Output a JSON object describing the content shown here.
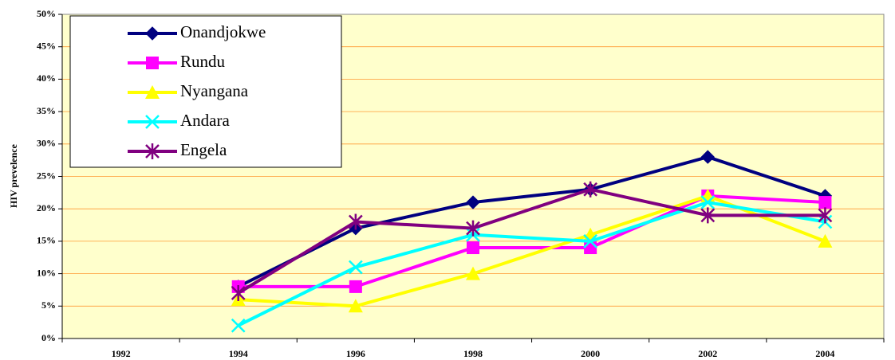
{
  "chart_data": {
    "type": "line",
    "y_label": "HIV prevelence",
    "categories": [
      "1992",
      "1994",
      "1996",
      "1998",
      "2000",
      "2002",
      "2004"
    ],
    "series": [
      {
        "name": "Onandjokwe",
        "color": "#000080",
        "marker": "diamond",
        "values": [
          null,
          8,
          17,
          21,
          23,
          28,
          22
        ]
      },
      {
        "name": "Rundu",
        "color": "#ff00ff",
        "marker": "square",
        "values": [
          null,
          8,
          8,
          14,
          14,
          22,
          21
        ]
      },
      {
        "name": "Nyangana",
        "color": "#ffff00",
        "marker": "triangle",
        "values": [
          null,
          6,
          5,
          10,
          16,
          22,
          15
        ]
      },
      {
        "name": "Andara",
        "color": "#00ffff",
        "marker": "x",
        "values": [
          null,
          2,
          11,
          16,
          15,
          21,
          18
        ]
      },
      {
        "name": "Engela",
        "color": "#800080",
        "marker": "asterisk",
        "values": [
          null,
          7,
          18,
          17,
          23,
          19,
          19
        ]
      }
    ],
    "ylim": [
      0,
      50
    ],
    "yticks": [
      {
        "value": 0,
        "label": "0%"
      },
      {
        "value": 5,
        "label": "5%"
      },
      {
        "value": 10,
        "label": "10%"
      },
      {
        "value": 15,
        "label": "15%"
      },
      {
        "value": 20,
        "label": "20%"
      },
      {
        "value": 25,
        "label": "25%"
      },
      {
        "value": 30,
        "label": "30%"
      },
      {
        "value": 35,
        "label": "35%"
      },
      {
        "value": 40,
        "label": "40%"
      },
      {
        "value": 45,
        "label": "45%"
      },
      {
        "value": 50,
        "label": "50%"
      }
    ],
    "grid": true,
    "legend": "upper-left"
  }
}
